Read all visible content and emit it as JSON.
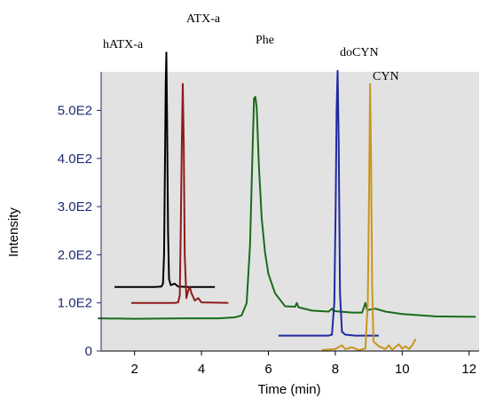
{
  "chart_data": {
    "type": "line",
    "xlabel": "Time (min)",
    "ylabel": "Intensity",
    "xlim": [
      1,
      12.3
    ],
    "ylim": [
      0,
      580
    ],
    "xticks": [
      "2",
      "4",
      "6",
      "8",
      "10",
      "12"
    ],
    "yticks": [
      "0",
      "1.0E2",
      "2.0E2",
      "3.0E2",
      "4.0E2",
      "5.0E2"
    ],
    "plot_background": "#e2e2e2",
    "grid": false,
    "series": [
      {
        "name": "hATX-a",
        "color": "#000000",
        "points": [
          [
            1.4,
            133
          ],
          [
            2.6,
            133
          ],
          [
            2.8,
            134
          ],
          [
            2.85,
            140
          ],
          [
            2.88,
            200
          ],
          [
            2.91,
            400
          ],
          [
            2.93,
            560
          ],
          [
            2.95,
            620
          ],
          [
            2.97,
            480
          ],
          [
            3.0,
            250
          ],
          [
            3.03,
            150
          ],
          [
            3.08,
            137
          ],
          [
            3.2,
            140
          ],
          [
            3.3,
            134
          ],
          [
            3.6,
            133
          ],
          [
            4.4,
            133
          ]
        ]
      },
      {
        "name": "ATX-a",
        "color": "#8e1b1b",
        "points": [
          [
            1.9,
            100
          ],
          [
            3.2,
            100
          ],
          [
            3.3,
            101
          ],
          [
            3.35,
            115
          ],
          [
            3.38,
            250
          ],
          [
            3.41,
            430
          ],
          [
            3.44,
            555
          ],
          [
            3.47,
            430
          ],
          [
            3.5,
            200
          ],
          [
            3.55,
            110
          ],
          [
            3.6,
            125
          ],
          [
            3.65,
            133
          ],
          [
            3.7,
            120
          ],
          [
            3.8,
            105
          ],
          [
            3.9,
            110
          ],
          [
            4.0,
            101
          ],
          [
            4.8,
            100
          ]
        ]
      },
      {
        "name": "Phe",
        "color": "#1a6b1a",
        "points": [
          [
            0.9,
            68
          ],
          [
            2.0,
            67
          ],
          [
            3.5,
            68
          ],
          [
            4.5,
            68
          ],
          [
            5.0,
            70
          ],
          [
            5.2,
            74
          ],
          [
            5.35,
            100
          ],
          [
            5.45,
            220
          ],
          [
            5.52,
            400
          ],
          [
            5.57,
            525
          ],
          [
            5.61,
            528
          ],
          [
            5.65,
            505
          ],
          [
            5.72,
            380
          ],
          [
            5.8,
            275
          ],
          [
            5.9,
            205
          ],
          [
            6.0,
            160
          ],
          [
            6.2,
            120
          ],
          [
            6.5,
            93
          ],
          [
            6.8,
            92
          ],
          [
            6.85,
            100
          ],
          [
            6.9,
            91
          ],
          [
            7.3,
            84
          ],
          [
            7.8,
            82
          ],
          [
            7.9,
            88
          ],
          [
            7.95,
            83
          ],
          [
            8.5,
            80
          ],
          [
            8.8,
            80
          ],
          [
            8.9,
            100
          ],
          [
            8.95,
            85
          ],
          [
            9.2,
            88
          ],
          [
            9.5,
            82
          ],
          [
            10.0,
            77
          ],
          [
            11.0,
            72
          ],
          [
            12.2,
            71
          ]
        ]
      },
      {
        "name": "doCYN",
        "color": "#1f2aa0",
        "points": [
          [
            6.3,
            32
          ],
          [
            7.8,
            32
          ],
          [
            7.9,
            34
          ],
          [
            7.97,
            100
          ],
          [
            8.01,
            300
          ],
          [
            8.04,
            500
          ],
          [
            8.07,
            582
          ],
          [
            8.1,
            440
          ],
          [
            8.14,
            120
          ],
          [
            8.2,
            40
          ],
          [
            8.3,
            34
          ],
          [
            8.6,
            32
          ],
          [
            9.3,
            32
          ]
        ]
      },
      {
        "name": "CYN",
        "color": "#c8961e",
        "points": [
          [
            7.6,
            2
          ],
          [
            8.0,
            4
          ],
          [
            8.2,
            12
          ],
          [
            8.3,
            4
          ],
          [
            8.5,
            8
          ],
          [
            8.7,
            2
          ],
          [
            8.9,
            5
          ],
          [
            8.97,
            100
          ],
          [
            9.01,
            330
          ],
          [
            9.04,
            555
          ],
          [
            9.07,
            400
          ],
          [
            9.1,
            140
          ],
          [
            9.14,
            20
          ],
          [
            9.3,
            10
          ],
          [
            9.5,
            4
          ],
          [
            9.6,
            12
          ],
          [
            9.7,
            3
          ],
          [
            9.9,
            14
          ],
          [
            10.0,
            5
          ],
          [
            10.1,
            10
          ],
          [
            10.2,
            4
          ],
          [
            10.3,
            12
          ],
          [
            10.4,
            25
          ]
        ]
      }
    ],
    "annotations": [
      {
        "text": "hATX-a",
        "series": "hATX-a"
      },
      {
        "text": "ATX-a",
        "series": "ATX-a"
      },
      {
        "text": "Phe",
        "series": "Phe"
      },
      {
        "text": "doCYN",
        "series": "doCYN"
      },
      {
        "text": "CYN",
        "series": "CYN"
      }
    ]
  }
}
